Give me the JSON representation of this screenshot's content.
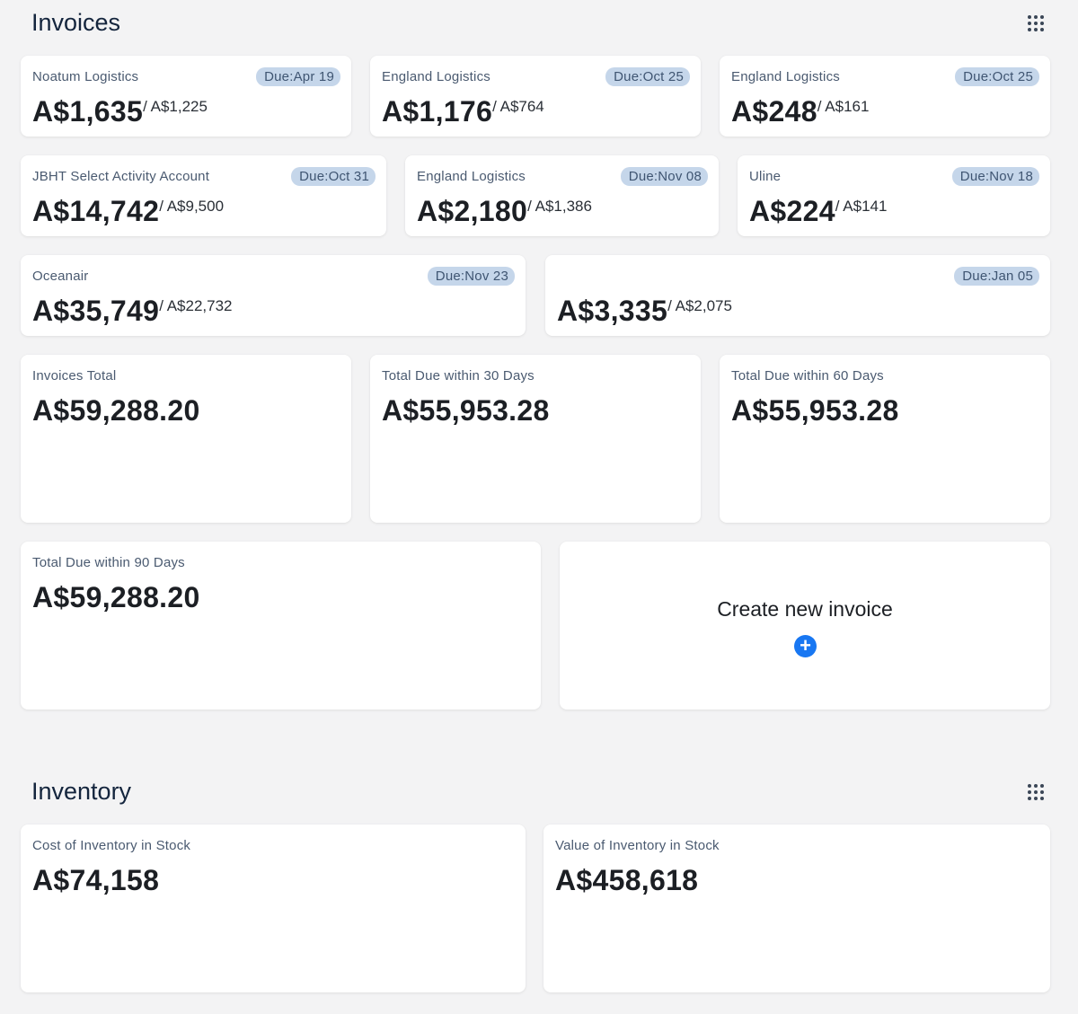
{
  "invoices": {
    "title": "Invoices",
    "menu_icon": "grid-dots-icon",
    "items": [
      {
        "name": "Noatum Logistics",
        "due": "Due:Apr 19",
        "amount": "A$1,635",
        "sub": "/ A$1,225"
      },
      {
        "name": "England Logistics",
        "due": "Due:Oct 25",
        "amount": "A$1,176",
        "sub": "/ A$764"
      },
      {
        "name": "England Logistics",
        "due": "Due:Oct 25",
        "amount": "A$248",
        "sub": "/ A$161"
      },
      {
        "name": "JBHT Select Activity Account",
        "due": "Due:Oct 31",
        "amount": "A$14,742",
        "sub": "/ A$9,500"
      },
      {
        "name": "England Logistics",
        "due": "Due:Nov 08",
        "amount": "A$2,180",
        "sub": "/ A$1,386"
      },
      {
        "name": "Uline",
        "due": "Due:Nov 18",
        "amount": "A$224",
        "sub": "/ A$141"
      },
      {
        "name": "Oceanair",
        "due": "Due:Nov 23",
        "amount": "A$35,749",
        "sub": "/ A$22,732"
      },
      {
        "name": "",
        "due": "Due:Jan 05",
        "amount": "A$3,335",
        "sub": "/ A$2,075"
      }
    ],
    "totals": [
      {
        "label": "Invoices Total",
        "value": "A$59,288.20"
      },
      {
        "label": "Total Due within 30 Days",
        "value": "A$55,953.28"
      },
      {
        "label": "Total Due within 60 Days",
        "value": "A$55,953.28"
      },
      {
        "label": "Total Due within 90 Days",
        "value": "A$59,288.20"
      }
    ],
    "create": {
      "label": "Create new invoice",
      "icon": "plus-circle-icon",
      "icon_glyph": "+",
      "accent": "#1877f2"
    }
  },
  "inventory": {
    "title": "Inventory",
    "menu_icon": "grid-dots-icon",
    "items": [
      {
        "label": "Cost of Inventory in Stock",
        "value": "A$74,158"
      },
      {
        "label": "Value of Inventory in Stock",
        "value": "A$458,618"
      }
    ]
  },
  "colors": {
    "background": "#f3f3f4",
    "badge_bg": "#c5d6ea",
    "badge_text": "#3f5572",
    "title": "#14253d"
  }
}
